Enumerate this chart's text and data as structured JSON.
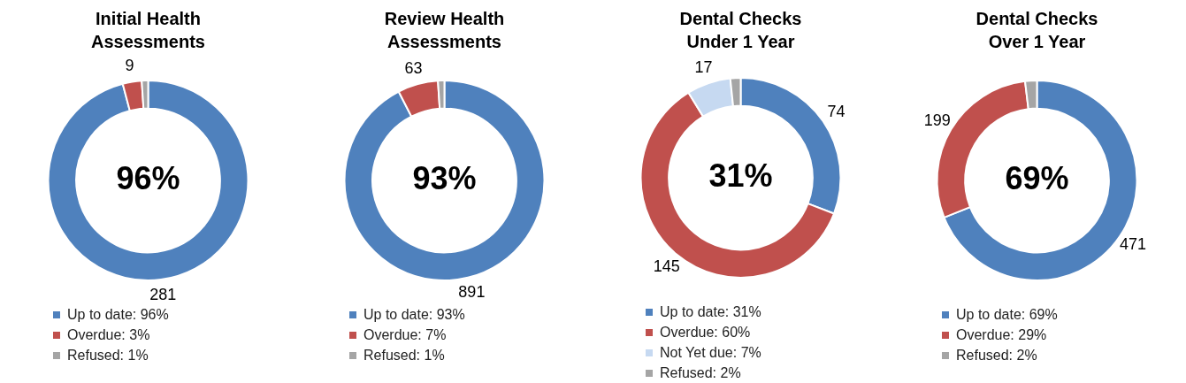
{
  "chart_data": [
    {
      "type": "donut",
      "title": "Initial Health Assessments",
      "categories": [
        "Up to date: 96%",
        "Overdue: 3%",
        "Refused: 1%"
      ],
      "values": [
        281,
        9,
        3
      ],
      "colors": [
        "#4f81bd",
        "#c0504d",
        "#a5a5a5"
      ],
      "value_labels": [
        "281",
        "9",
        null
      ],
      "annotations": [
        "96%"
      ],
      "legend": "bottom"
    },
    {
      "type": "donut",
      "title": "Review Health Assessments",
      "categories": [
        "Up to date: 93%",
        "Overdue: 7%",
        "Refused: 1%"
      ],
      "values": [
        891,
        63,
        10
      ],
      "colors": [
        "#4f81bd",
        "#c0504d",
        "#a5a5a5"
      ],
      "value_labels": [
        "891",
        "63",
        null
      ],
      "annotations": [
        "93%"
      ],
      "legend": "bottom"
    },
    {
      "type": "donut",
      "title": "Dental Checks Under 1 Year",
      "categories": [
        "Up to date: 31%",
        "Overdue: 60%",
        "Not Yet due: 7%",
        "Refused: 2%"
      ],
      "values": [
        74,
        145,
        17,
        4
      ],
      "colors": [
        "#4f81bd",
        "#c0504d",
        "#c6d9f1",
        "#a5a5a5"
      ],
      "value_labels": [
        "74",
        "145",
        "17",
        null
      ],
      "annotations": [
        "31%"
      ],
      "legend": "bottom"
    },
    {
      "type": "donut",
      "title": "Dental Checks Over 1 Year",
      "categories": [
        "Up to date: 69%",
        "Overdue: 29%",
        "Refused: 2%"
      ],
      "values": [
        471,
        199,
        13
      ],
      "colors": [
        "#4f81bd",
        "#c0504d",
        "#a5a5a5"
      ],
      "value_labels": [
        "471",
        "199",
        null
      ],
      "annotations": [
        "69%"
      ],
      "legend": "bottom"
    }
  ]
}
